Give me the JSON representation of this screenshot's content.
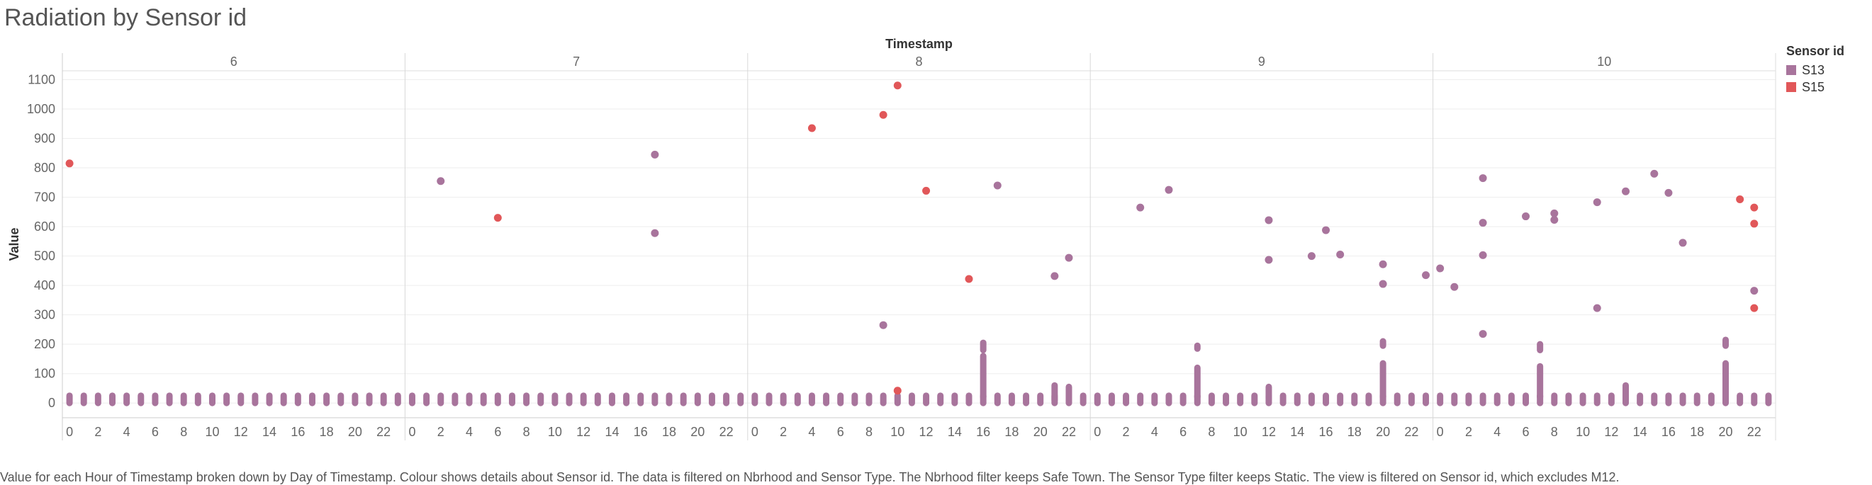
{
  "title": "Radiation  by Sensor id",
  "caption": "Value for each Hour of Timestamp broken down by Day of Timestamp.  Colour shows details about Sensor id. The data is filtered on Nbrhood and Sensor Type. The Nbrhood filter keeps Safe Town. The Sensor Type filter keeps Static. The view is filtered on Sensor id, which excludes M12.",
  "legend": {
    "title": "Sensor id",
    "items": [
      {
        "label": "S13",
        "color": "#A8749C"
      },
      {
        "label": "S15",
        "color": "#E15759"
      }
    ]
  },
  "chart_data": {
    "type": "scatter",
    "title": "Radiation  by Sensor id",
    "column_header": "Timestamp",
    "xlabel": "",
    "ylabel": "Value",
    "ylim": [
      -50,
      1130
    ],
    "y_ticks": [
      0,
      100,
      200,
      300,
      400,
      500,
      600,
      700,
      800,
      900,
      1000,
      1100
    ],
    "days": [
      "6",
      "7",
      "8",
      "9",
      "10"
    ],
    "hour_ticks": [
      0,
      2,
      4,
      6,
      8,
      10,
      12,
      14,
      16,
      18,
      20,
      22
    ],
    "hours_per_panel": 24,
    "baseline": {
      "series": "S13",
      "low": 0,
      "high": 25,
      "note": "dense readings at every hour"
    },
    "series": [
      {
        "name": "S13",
        "color": "#A8749C",
        "outliers": [
          {
            "day": "7",
            "hour": 2,
            "value": 755
          },
          {
            "day": "7",
            "hour": 17,
            "value": 845
          },
          {
            "day": "7",
            "hour": 17,
            "value": 578
          },
          {
            "day": "8",
            "hour": 9,
            "value": 265
          },
          {
            "day": "8",
            "hour": 17,
            "value": 740
          },
          {
            "day": "8",
            "hour": 21,
            "value": 432
          },
          {
            "day": "8",
            "hour": 22,
            "value": 494
          },
          {
            "day": "9",
            "hour": 3,
            "value": 665
          },
          {
            "day": "9",
            "hour": 5,
            "value": 725
          },
          {
            "day": "9",
            "hour": 12,
            "value": 622
          },
          {
            "day": "9",
            "hour": 12,
            "value": 487
          },
          {
            "day": "9",
            "hour": 15,
            "value": 500
          },
          {
            "day": "9",
            "hour": 16,
            "value": 588
          },
          {
            "day": "9",
            "hour": 17,
            "value": 505
          },
          {
            "day": "9",
            "hour": 20,
            "value": 472
          },
          {
            "day": "9",
            "hour": 20,
            "value": 405
          },
          {
            "day": "9",
            "hour": 23,
            "value": 435
          },
          {
            "day": "10",
            "hour": 0,
            "value": 458
          },
          {
            "day": "10",
            "hour": 1,
            "value": 395
          },
          {
            "day": "10",
            "hour": 3,
            "value": 765
          },
          {
            "day": "10",
            "hour": 3,
            "value": 613
          },
          {
            "day": "10",
            "hour": 3,
            "value": 503
          },
          {
            "day": "10",
            "hour": 3,
            "value": 235
          },
          {
            "day": "10",
            "hour": 6,
            "value": 635
          },
          {
            "day": "10",
            "hour": 8,
            "value": 645
          },
          {
            "day": "10",
            "hour": 8,
            "value": 623
          },
          {
            "day": "10",
            "hour": 11,
            "value": 683
          },
          {
            "day": "10",
            "hour": 11,
            "value": 323
          },
          {
            "day": "10",
            "hour": 13,
            "value": 720
          },
          {
            "day": "10",
            "hour": 15,
            "value": 780
          },
          {
            "day": "10",
            "hour": 16,
            "value": 715
          },
          {
            "day": "10",
            "hour": 17,
            "value": 545
          },
          {
            "day": "10",
            "hour": 22,
            "value": 382
          }
        ],
        "vertical_clusters": [
          {
            "day": "8",
            "hour": 16,
            "from": 20,
            "to": 160
          },
          {
            "day": "8",
            "hour": 16,
            "from": 180,
            "to": 205
          },
          {
            "day": "8",
            "hour": 21,
            "from": 10,
            "to": 60
          },
          {
            "day": "8",
            "hour": 22,
            "from": 10,
            "to": 55
          },
          {
            "day": "9",
            "hour": 7,
            "from": 20,
            "to": 120
          },
          {
            "day": "9",
            "hour": 7,
            "from": 185,
            "to": 195
          },
          {
            "day": "9",
            "hour": 12,
            "from": 15,
            "to": 55
          },
          {
            "day": "9",
            "hour": 20,
            "from": 20,
            "to": 135
          },
          {
            "day": "9",
            "hour": 20,
            "from": 195,
            "to": 210
          },
          {
            "day": "10",
            "hour": 7,
            "from": 20,
            "to": 125
          },
          {
            "day": "10",
            "hour": 7,
            "from": 180,
            "to": 200
          },
          {
            "day": "10",
            "hour": 13,
            "from": 15,
            "to": 60
          },
          {
            "day": "10",
            "hour": 20,
            "from": 20,
            "to": 135
          },
          {
            "day": "10",
            "hour": 20,
            "from": 195,
            "to": 215
          }
        ]
      },
      {
        "name": "S15",
        "color": "#E15759",
        "outliers": [
          {
            "day": "6",
            "hour": 0,
            "value": 815
          },
          {
            "day": "7",
            "hour": 6,
            "value": 630
          },
          {
            "day": "8",
            "hour": 4,
            "value": 935
          },
          {
            "day": "8",
            "hour": 9,
            "value": 980
          },
          {
            "day": "8",
            "hour": 10,
            "value": 1080
          },
          {
            "day": "8",
            "hour": 10,
            "value": 42
          },
          {
            "day": "8",
            "hour": 12,
            "value": 722
          },
          {
            "day": "8",
            "hour": 15,
            "value": 422
          },
          {
            "day": "10",
            "hour": 21,
            "value": 693
          },
          {
            "day": "10",
            "hour": 22,
            "value": 665
          },
          {
            "day": "10",
            "hour": 22,
            "value": 610
          },
          {
            "day": "10",
            "hour": 22,
            "value": 323
          }
        ]
      }
    ]
  }
}
